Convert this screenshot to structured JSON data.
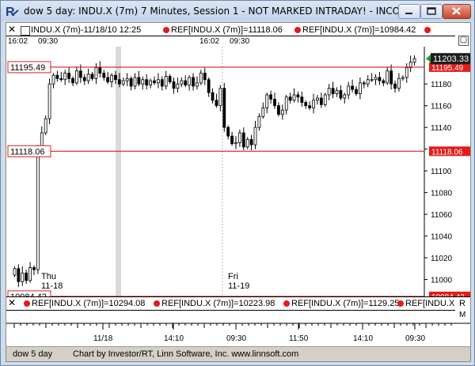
{
  "window": {
    "title": "dow 5 day: INDU.X (7m) 7 Minutes, Session 1 - NOT MARKED INTRADAY! - INCO...",
    "buttons": [
      "minimize",
      "maximize",
      "close"
    ]
  },
  "top_legend": {
    "symbol_entry": "INDU.X (7m)-11/18/10 12:25",
    "ref_entries": [
      "REF[INDU.X (7m)]=11118.06",
      "REF[INDU.X (7m)]=10984.42"
    ],
    "time_labels": [
      "16:02",
      "09:30",
      "16:02",
      "09:30"
    ]
  },
  "bottom_legend": {
    "ref_entries": [
      "REF[INDU.X (7m)]=10294.08",
      "REF[INDU.X (7m)]=10223.98",
      "REF[INDU.X (7m)]=1129.25",
      "REF[INDU.X (7m)]=11..."
    ],
    "right_letters": [
      "R",
      "M"
    ]
  },
  "day_labels": [
    {
      "day": "Thu",
      "date": "11-18"
    },
    {
      "day": "Fri",
      "date": "11-19"
    }
  ],
  "footer": {
    "chart_name": "dow 5 day",
    "credit": "Chart by Investor/RT, Linn Software, Inc. www.linnsoft.com"
  },
  "colors": {
    "ref_line": "#e41b1b",
    "last_price_tag": "#1e1e1e",
    "last_marker": "#1f9c2a",
    "candle_up": "#ffffff",
    "candle_down": "#000000",
    "session_band": "#d9d9d9"
  },
  "chart_data": {
    "type": "candlestick",
    "title": "INDU.X (7m)",
    "ylim": [
      10980,
      11210
    ],
    "y_ticks": [
      11000,
      11020,
      11040,
      11060,
      11080,
      11100,
      11120,
      11140,
      11160,
      11180
    ],
    "x_ticks": [
      "11/18",
      "14:10",
      "09:30",
      "11:50",
      "14:10",
      "09:30"
    ],
    "reference_lines": [
      {
        "value": 11195.49,
        "label": "11195.49"
      },
      {
        "value": 11118.06,
        "label": "11118.06"
      },
      {
        "value": 10984.42,
        "label": "10984.42"
      }
    ],
    "last_price": 11203.33,
    "sessions": [
      {
        "label": "Thu 11-18",
        "start_bar": 0
      },
      {
        "label": "Fri 11-19",
        "start_bar": 54
      }
    ],
    "closes": [
      11010,
      10998,
      11006,
      10999,
      11011,
      11009,
      11120,
      11135,
      11148,
      11180,
      11188,
      11185,
      11184,
      11190,
      11185,
      11181,
      11192,
      11186,
      11183,
      11189,
      11185,
      11195,
      11190,
      11186,
      11182,
      11188,
      11184,
      11180,
      11183,
      11185,
      11178,
      11186,
      11180,
      11184,
      11179,
      11183,
      11181,
      11184,
      11178,
      11187,
      11182,
      11176,
      11180,
      11183,
      11179,
      11186,
      11178,
      11181,
      11190,
      11184,
      11172,
      11165,
      11160,
      11176,
      11140,
      11132,
      11125,
      11126,
      11135,
      11122,
      11129,
      11124,
      11140,
      11150,
      11158,
      11170,
      11166,
      11160,
      11152,
      11156,
      11168,
      11165,
      11170,
      11168,
      11163,
      11160,
      11158,
      11165,
      11167,
      11161,
      11170,
      11176,
      11171,
      11174,
      11167,
      11170,
      11178,
      11175,
      11171,
      11181,
      11180,
      11184,
      11184,
      11186,
      11183,
      11181,
      11192,
      11180,
      11176,
      11185,
      11186,
      11195,
      11200,
      11203.33
    ]
  }
}
